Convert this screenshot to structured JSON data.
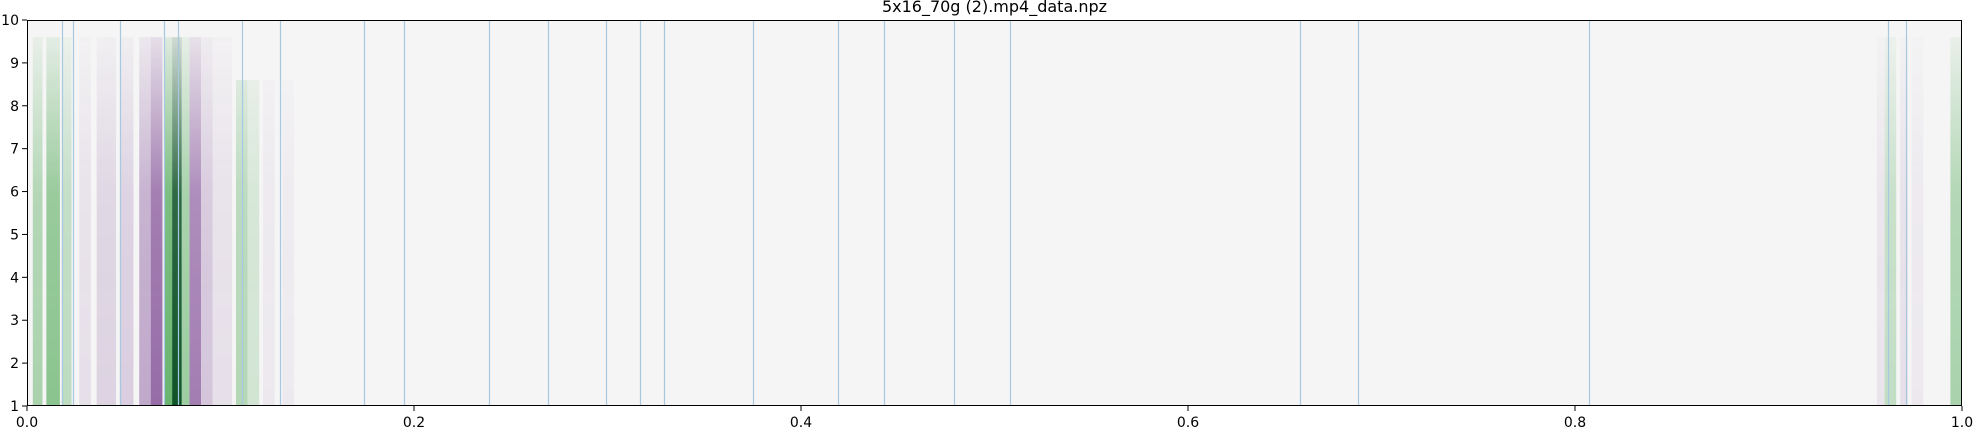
{
  "chart_data": {
    "type": "heatmap",
    "title": "5x16_70g (2).mp4_data.npz",
    "xlabel": "",
    "ylabel": "",
    "xlim": [
      0.0,
      1.0
    ],
    "ylim": [
      1,
      10
    ],
    "x_ticks": [
      "0.0",
      "0.2",
      "0.4",
      "0.6",
      "0.8",
      "1.0"
    ],
    "x_tick_values": [
      0.0,
      0.2,
      0.4,
      0.6,
      0.8,
      1.0
    ],
    "y_ticks": [
      "1",
      "2",
      "3",
      "4",
      "5",
      "6",
      "7",
      "8",
      "9",
      "10"
    ],
    "y_tick_values": [
      1,
      2,
      3,
      4,
      5,
      6,
      7,
      8,
      9,
      10
    ],
    "colormap": "PRGn",
    "background_color": "#f5f5f5",
    "positive_color": "#00441b",
    "negative_color": "#40004b",
    "marker_line_color": "#a6c8e0",
    "vertical_markers": [
      0.018,
      0.024,
      0.048,
      0.071,
      0.078,
      0.111,
      0.131,
      0.174,
      0.195,
      0.239,
      0.269,
      0.299,
      0.317,
      0.329,
      0.375,
      0.419,
      0.443,
      0.479,
      0.508,
      0.658,
      0.688,
      0.807,
      0.962,
      0.971
    ],
    "bands": [
      {
        "x": 0.003,
        "width": 0.005,
        "value": 0.3,
        "rows": [
          1,
          8
        ]
      },
      {
        "x": 0.01,
        "width": 0.007,
        "value": 0.42,
        "rows": [
          1,
          8
        ]
      },
      {
        "x": 0.018,
        "width": 0.005,
        "value": 0.22,
        "rows": [
          1,
          8
        ]
      },
      {
        "x": 0.027,
        "width": 0.006,
        "value": -0.1,
        "rows": [
          1,
          8
        ]
      },
      {
        "x": 0.036,
        "width": 0.01,
        "value": -0.16,
        "rows": [
          1,
          8
        ]
      },
      {
        "x": 0.048,
        "width": 0.007,
        "value": -0.18,
        "rows": [
          1,
          8
        ]
      },
      {
        "x": 0.058,
        "width": 0.007,
        "value": -0.35,
        "rows": [
          1,
          8
        ]
      },
      {
        "x": 0.064,
        "width": 0.006,
        "value": -0.62,
        "rows": [
          1,
          8
        ]
      },
      {
        "x": 0.071,
        "width": 0.004,
        "value": 0.55,
        "rows": [
          1,
          8
        ]
      },
      {
        "x": 0.075,
        "width": 0.005,
        "value": 0.95,
        "rows": [
          1,
          8
        ]
      },
      {
        "x": 0.08,
        "width": 0.004,
        "value": 0.35,
        "rows": [
          1,
          8
        ]
      },
      {
        "x": 0.084,
        "width": 0.006,
        "value": -0.55,
        "rows": [
          1,
          8
        ]
      },
      {
        "x": 0.09,
        "width": 0.006,
        "value": -0.22,
        "rows": [
          1,
          8
        ]
      },
      {
        "x": 0.096,
        "width": 0.01,
        "value": -0.1,
        "rows": [
          1,
          8
        ]
      },
      {
        "x": 0.108,
        "width": 0.006,
        "value": 0.26,
        "rows": [
          1,
          7
        ]
      },
      {
        "x": 0.114,
        "width": 0.006,
        "value": 0.14,
        "rows": [
          1,
          7
        ]
      },
      {
        "x": 0.122,
        "width": 0.006,
        "value": -0.06,
        "rows": [
          1,
          7
        ]
      },
      {
        "x": 0.132,
        "width": 0.006,
        "value": -0.05,
        "rows": [
          1,
          7
        ]
      },
      {
        "x": 0.956,
        "width": 0.004,
        "value": -0.08,
        "rows": [
          1,
          8
        ]
      },
      {
        "x": 0.96,
        "width": 0.006,
        "value": 0.2,
        "rows": [
          1,
          8
        ]
      },
      {
        "x": 0.968,
        "width": 0.004,
        "value": -0.1,
        "rows": [
          1,
          8
        ]
      },
      {
        "x": 0.974,
        "width": 0.006,
        "value": -0.06,
        "rows": [
          1,
          8
        ]
      },
      {
        "x": 0.994,
        "width": 0.006,
        "value": 0.3,
        "rows": [
          1,
          8
        ]
      }
    ]
  }
}
